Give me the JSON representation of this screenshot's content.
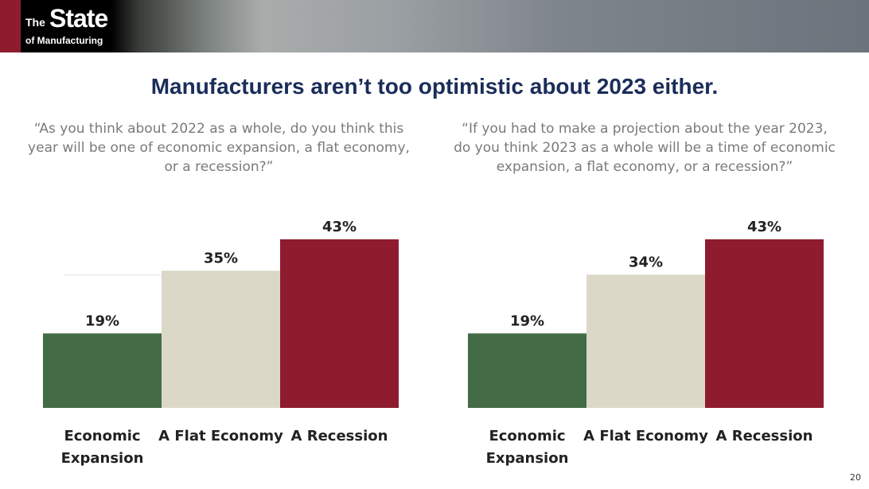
{
  "header": {
    "logo_text": "The State of Manufacturing",
    "logo_the": "The",
    "logo_state": "State",
    "logo_mfg": "of Manufacturing"
  },
  "title": "Manufacturers aren’t too optimistic about 2023 either.",
  "page_number": "20",
  "colors": {
    "expansion": "#436b45",
    "flat": "#dcd8c7",
    "recession": "#8e1b2e",
    "title": "#1a2d5a"
  },
  "chart_data": [
    {
      "type": "bar",
      "question": "“As you think about 2022 as a whole, do you think this year will be one of economic expansion, a flat economy, or a recession?”",
      "categories": [
        "Economic Expansion",
        "A Flat Economy",
        "A Recession"
      ],
      "values": [
        19,
        35,
        43
      ],
      "labels": [
        "19%",
        "35%",
        "43%"
      ],
      "ylim": [
        0,
        43
      ]
    },
    {
      "type": "bar",
      "question": "“If you had to make a projection about the year 2023, do you think 2023 as a whole will be a time of economic expansion, a flat economy, or a recession?”",
      "categories": [
        "Economic Expansion",
        "A Flat Economy",
        "A Recession"
      ],
      "values": [
        19,
        34,
        43
      ],
      "labels": [
        "19%",
        "34%",
        "43%"
      ],
      "ylim": [
        0,
        43
      ]
    }
  ]
}
